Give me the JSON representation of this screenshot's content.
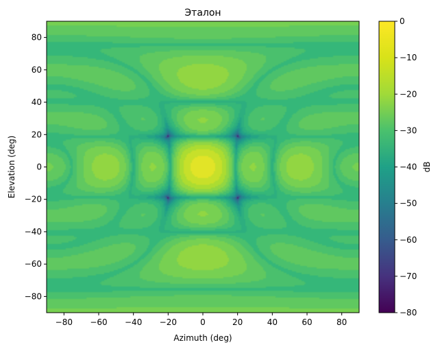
{
  "chart_data": {
    "type": "heatmap",
    "title": "Эталон",
    "xlabel": "Azimuth (deg)",
    "ylabel": "Elevation (deg)",
    "xlim": [
      -90,
      90
    ],
    "ylim": [
      -90,
      90
    ],
    "x_ticks": [
      -80,
      -60,
      -40,
      -20,
      0,
      20,
      40,
      60,
      80
    ],
    "y_ticks": [
      -80,
      -60,
      -40,
      -20,
      0,
      20,
      40,
      60,
      80
    ],
    "colorbar": {
      "label": "dB",
      "range": [
        -80,
        0
      ],
      "ticks": [
        0,
        -10,
        -20,
        -30,
        -40,
        -50,
        -60,
        -70,
        -80
      ],
      "colormap": "viridis"
    },
    "grid": false,
    "pattern": {
      "description_values": "radiation pattern in dB: main lobe 0 dB at (0,0), sidelobes about -20 to -30 dB, deep nulls near -80 dB",
      "peak_db": 0,
      "peak_azimuth": 0,
      "peak_elevation": 0,
      "floor_db": -80
    }
  }
}
